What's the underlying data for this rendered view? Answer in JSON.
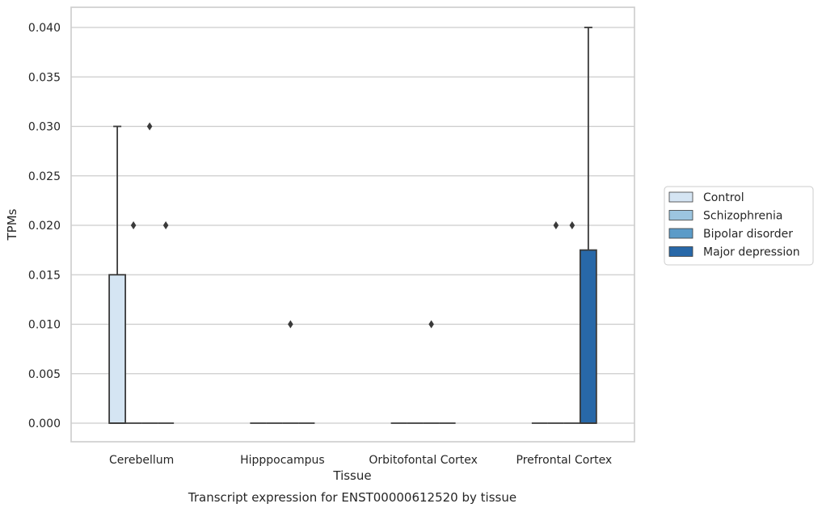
{
  "chart_data": {
    "type": "box",
    "title": "",
    "caption": "Transcript expression for ENST00000612520 by tissue",
    "xlabel": "Tissue",
    "ylabel": "TPMs",
    "ylim": [
      -0.002,
      0.042
    ],
    "yticks": [
      0.0,
      0.005,
      0.01,
      0.015,
      0.02,
      0.025,
      0.03,
      0.035,
      0.04
    ],
    "ytick_labels": [
      "0.000",
      "0.005",
      "0.010",
      "0.015",
      "0.020",
      "0.025",
      "0.030",
      "0.035",
      "0.040"
    ],
    "grid": "horizontal",
    "legend_position": "right",
    "categories": [
      "Cerebellum",
      "Hipppocampus",
      "Orbitofontal Cortex",
      "Prefrontal Cortex"
    ],
    "series": [
      {
        "name": "Control",
        "color": "#d5e5f3",
        "boxes": [
          {
            "q1": 0.0,
            "median": 0.0,
            "q3": 0.015,
            "whisker_low": 0.0,
            "whisker_high": 0.03,
            "outliers": []
          },
          {
            "q1": 0.0,
            "median": 0.0,
            "q3": 0.0,
            "whisker_low": 0.0,
            "whisker_high": 0.0,
            "outliers": []
          },
          {
            "q1": 0.0,
            "median": 0.0,
            "q3": 0.0,
            "whisker_low": 0.0,
            "whisker_high": 0.0,
            "outliers": []
          },
          {
            "q1": 0.0,
            "median": 0.0,
            "q3": 0.0,
            "whisker_low": 0.0,
            "whisker_high": 0.0,
            "outliers": []
          }
        ]
      },
      {
        "name": "Schizophrenia",
        "color": "#9cc5e0",
        "boxes": [
          {
            "q1": 0.0,
            "median": 0.0,
            "q3": 0.0,
            "whisker_low": 0.0,
            "whisker_high": 0.0,
            "outliers": [
              0.02
            ]
          },
          {
            "q1": 0.0,
            "median": 0.0,
            "q3": 0.0,
            "whisker_low": 0.0,
            "whisker_high": 0.0,
            "outliers": []
          },
          {
            "q1": 0.0,
            "median": 0.0,
            "q3": 0.0,
            "whisker_low": 0.0,
            "whisker_high": 0.0,
            "outliers": []
          },
          {
            "q1": 0.0,
            "median": 0.0,
            "q3": 0.0,
            "whisker_low": 0.0,
            "whisker_high": 0.0,
            "outliers": [
              0.02
            ]
          }
        ]
      },
      {
        "name": "Bipolar disorder",
        "color": "#5b9bc8",
        "boxes": [
          {
            "q1": 0.0,
            "median": 0.0,
            "q3": 0.0,
            "whisker_low": 0.0,
            "whisker_high": 0.0,
            "outliers": [
              0.03
            ]
          },
          {
            "q1": 0.0,
            "median": 0.0,
            "q3": 0.0,
            "whisker_low": 0.0,
            "whisker_high": 0.0,
            "outliers": [
              0.01
            ]
          },
          {
            "q1": 0.0,
            "median": 0.0,
            "q3": 0.0,
            "whisker_low": 0.0,
            "whisker_high": 0.0,
            "outliers": [
              0.01
            ]
          },
          {
            "q1": 0.0,
            "median": 0.0,
            "q3": 0.0,
            "whisker_low": 0.0,
            "whisker_high": 0.0,
            "outliers": [
              0.02
            ]
          }
        ]
      },
      {
        "name": "Major depression",
        "color": "#2868a8",
        "boxes": [
          {
            "q1": 0.0,
            "median": 0.0,
            "q3": 0.0,
            "whisker_low": 0.0,
            "whisker_high": 0.0,
            "outliers": [
              0.02
            ]
          },
          {
            "q1": 0.0,
            "median": 0.0,
            "q3": 0.0,
            "whisker_low": 0.0,
            "whisker_high": 0.0,
            "outliers": []
          },
          {
            "q1": 0.0,
            "median": 0.0,
            "q3": 0.0,
            "whisker_low": 0.0,
            "whisker_high": 0.0,
            "outliers": []
          },
          {
            "q1": 0.0,
            "median": 0.0,
            "q3": 0.0175,
            "whisker_low": 0.0,
            "whisker_high": 0.04,
            "outliers": []
          }
        ]
      }
    ]
  }
}
